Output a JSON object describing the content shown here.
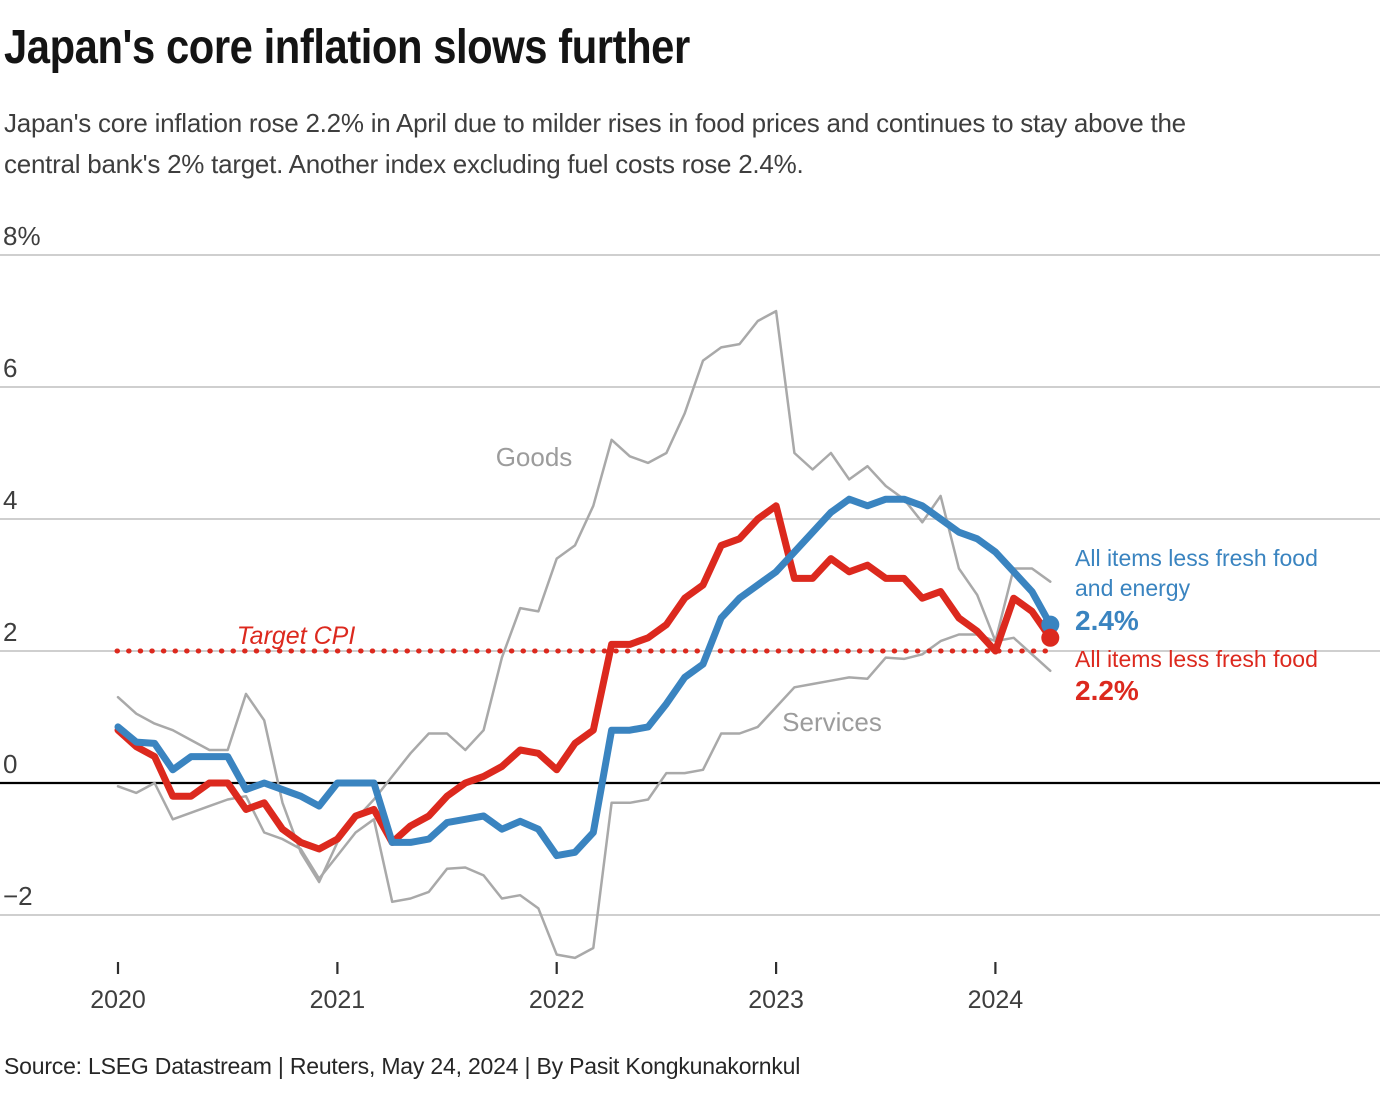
{
  "header": {
    "title": "Japan's core inflation slows further",
    "subtitle_lines": [
      "Japan's core inflation rose 2.2% in April due to milder rises in food prices and continues to stay above the",
      "central bank's 2% target. Another index excluding fuel costs rose 2.4%."
    ]
  },
  "footer": {
    "source": "Source: LSEG Datastream | Reuters, May 24, 2024 | By Pasit Kongkunakornkul"
  },
  "chart_data": {
    "type": "line",
    "title": "Japan's core inflation slows further",
    "x_period": "monthly",
    "x_start": "2020-01",
    "x_end": "2024-04",
    "x_tick_labels": [
      "2020",
      "2021",
      "2022",
      "2023",
      "2024"
    ],
    "y_axis": {
      "unit": "%",
      "tick_labels": [
        "8%",
        "6",
        "4",
        "2",
        "0",
        "−2"
      ],
      "tick_values": [
        8,
        6,
        4,
        2,
        0,
        -2
      ],
      "ylim": [
        -3.1,
        8.7
      ],
      "grid": true
    },
    "target_line": {
      "label": "Target CPI",
      "value": 2,
      "style": "dotted",
      "color": "#dc291e"
    },
    "series": [
      {
        "key": "services",
        "name": "Services",
        "color": "#a9a9a9",
        "width": 2.5,
        "end_dot": false,
        "values": [
          -0.05,
          -0.15,
          0.0,
          -0.55,
          -0.45,
          -0.35,
          -0.25,
          -0.2,
          -0.75,
          -0.85,
          -1.0,
          -1.45,
          -1.1,
          -0.75,
          -0.55,
          -1.8,
          -1.75,
          -1.65,
          -1.3,
          -1.28,
          -1.4,
          -1.75,
          -1.7,
          -1.9,
          -2.6,
          -2.65,
          -2.5,
          -0.3,
          -0.3,
          -0.25,
          0.15,
          0.15,
          0.2,
          0.75,
          0.75,
          0.85,
          1.15,
          1.45,
          1.5,
          1.55,
          1.6,
          1.58,
          1.9,
          1.88,
          1.95,
          2.15,
          2.25,
          2.25,
          2.15,
          2.2,
          1.95,
          1.7
        ]
      },
      {
        "key": "goods",
        "name": "Goods",
        "color": "#a9a9a9",
        "width": 2.5,
        "end_dot": false,
        "values": [
          1.3,
          1.05,
          0.9,
          0.8,
          0.65,
          0.5,
          0.5,
          1.35,
          0.95,
          -0.3,
          -1.05,
          -1.5,
          -0.9,
          -0.55,
          -0.25,
          0.1,
          0.45,
          0.75,
          0.75,
          0.5,
          0.8,
          1.9,
          2.65,
          2.6,
          3.4,
          3.6,
          4.2,
          5.2,
          4.95,
          4.85,
          5.0,
          5.6,
          6.4,
          6.6,
          6.65,
          7.0,
          7.15,
          5.0,
          4.75,
          5.0,
          4.6,
          4.8,
          4.5,
          4.3,
          3.95,
          4.35,
          3.25,
          2.85,
          2.15,
          3.25,
          3.25,
          3.05
        ]
      },
      {
        "key": "all-items-less-fresh-food",
        "name": "All items less fresh food",
        "color": "#dc291e",
        "width": 7,
        "end_dot": true,
        "latest_value": "2.2%",
        "values": [
          0.8,
          0.55,
          0.4,
          -0.2,
          -0.2,
          0.0,
          0.0,
          -0.4,
          -0.3,
          -0.7,
          -0.9,
          -1.0,
          -0.85,
          -0.5,
          -0.4,
          -0.9,
          -0.65,
          -0.5,
          -0.2,
          0.0,
          0.1,
          0.25,
          0.5,
          0.45,
          0.2,
          0.6,
          0.8,
          2.1,
          2.1,
          2.2,
          2.4,
          2.8,
          3.0,
          3.6,
          3.7,
          4.0,
          4.2,
          3.1,
          3.1,
          3.4,
          3.2,
          3.3,
          3.1,
          3.1,
          2.8,
          2.9,
          2.5,
          2.3,
          2.0,
          2.8,
          2.6,
          2.2
        ]
      },
      {
        "key": "all-items-less-fresh-food-and-energy",
        "name": "All items less fresh food and energy",
        "color": "#3a84c0",
        "width": 7,
        "end_dot": true,
        "latest_value": "2.4%",
        "values": [
          0.85,
          0.62,
          0.6,
          0.2,
          0.4,
          0.4,
          0.4,
          -0.1,
          0.0,
          -0.1,
          -0.2,
          -0.35,
          0.0,
          0.0,
          0.0,
          -0.9,
          -0.9,
          -0.85,
          -0.6,
          -0.55,
          -0.5,
          -0.7,
          -0.58,
          -0.7,
          -1.1,
          -1.05,
          -0.75,
          0.8,
          0.8,
          0.85,
          1.2,
          1.6,
          1.8,
          2.5,
          2.8,
          3.0,
          3.2,
          3.5,
          3.8,
          4.1,
          4.3,
          4.2,
          4.3,
          4.3,
          4.2,
          4.0,
          3.8,
          3.7,
          3.5,
          3.2,
          2.9,
          2.4
        ]
      }
    ],
    "annotations": {
      "goods": "Goods",
      "services": "Services",
      "target": "Target CPI",
      "blue_label_line1": "All items less fresh food",
      "blue_label_line2": "and energy",
      "blue_value": "2.4%",
      "red_label_line1": "All items less fresh food",
      "red_value": "2.2%"
    },
    "legend_position": "right-of-line-ends"
  }
}
